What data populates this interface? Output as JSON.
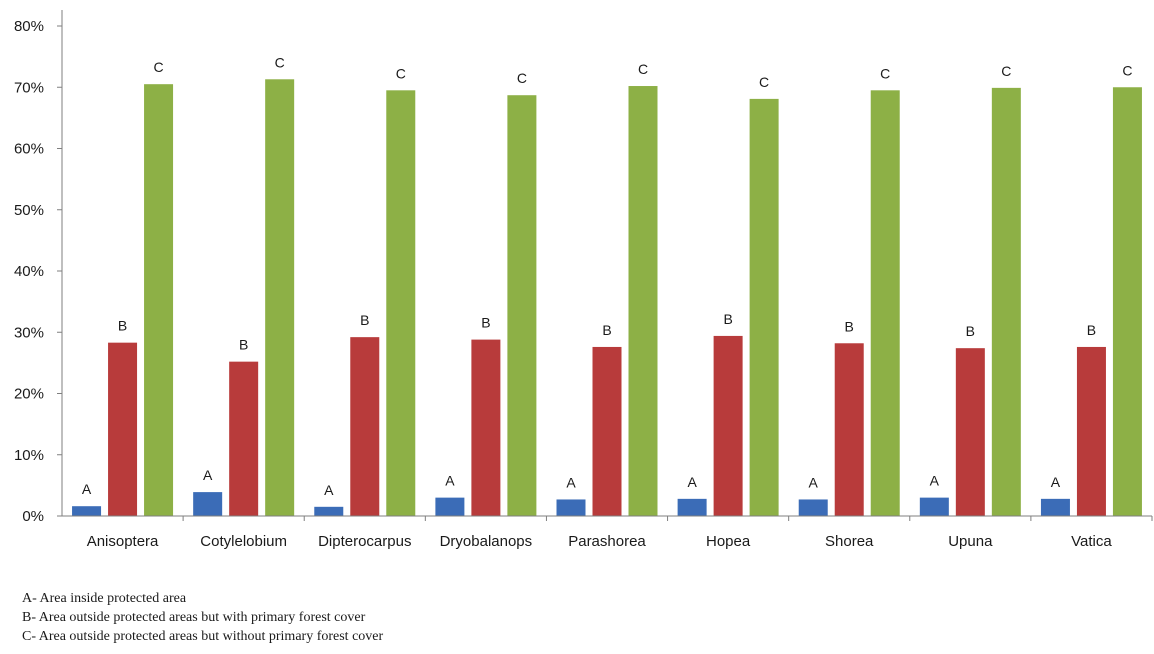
{
  "chart_data": {
    "type": "bar",
    "categories": [
      "Anisoptera",
      "Cotylelobium",
      "Dipterocarpus",
      "Dryobalanops",
      "Parashorea",
      "Hopea",
      "Shorea",
      "Upuna",
      "Vatica"
    ],
    "series": [
      {
        "label": "A",
        "color": "#3b6cb7",
        "values": [
          0.016,
          0.039,
          0.015,
          0.03,
          0.027,
          0.028,
          0.027,
          0.03,
          0.028
        ]
      },
      {
        "label": "B",
        "color": "#b83b3b",
        "values": [
          0.283,
          0.252,
          0.292,
          0.288,
          0.276,
          0.294,
          0.282,
          0.274,
          0.276
        ]
      },
      {
        "label": "C",
        "color": "#8db046",
        "values": [
          0.705,
          0.713,
          0.695,
          0.687,
          0.702,
          0.681,
          0.695,
          0.699,
          0.7
        ]
      }
    ],
    "ylim": [
      0,
      0.8
    ],
    "yticks": [
      0,
      0.1,
      0.2,
      0.3,
      0.4,
      0.5,
      0.6,
      0.7,
      0.8
    ],
    "ytick_labels": [
      "0%",
      "10%",
      "20%",
      "30%",
      "40%",
      "50%",
      "60%",
      "70%",
      "80%"
    ],
    "grid": false,
    "legend_notes": [
      "A- Area inside protected area",
      "B- Area outside protected areas but with primary forest cover",
      "C- Area outside protected areas but without primary forest cover"
    ]
  }
}
